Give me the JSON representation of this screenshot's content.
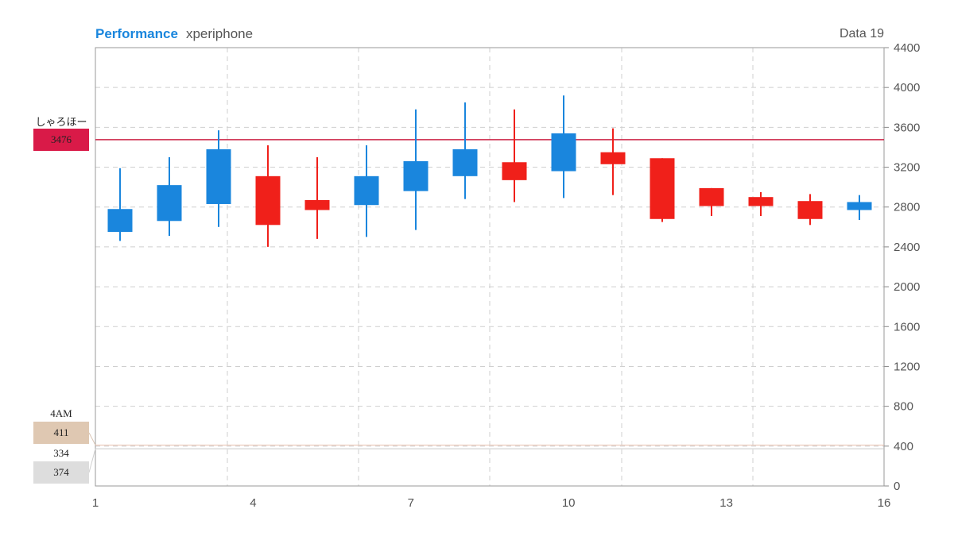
{
  "header": {
    "title": "Performance",
    "subtitle": "xperiphone",
    "right_label": "Data 19"
  },
  "colors": {
    "accent": "#1a86dd",
    "up": "#1a86dd",
    "down": "#f0201a",
    "marker_line_1": "#cc2244",
    "marker_box_1": "#d91a48",
    "marker_line_2": "#e8bfae",
    "marker_box_2": "#dfc8b2",
    "marker_box_3": "#dddddd"
  },
  "markers": {
    "m1": {
      "label": "しゃろほー",
      "value": "3476"
    },
    "m2": {
      "label": "4AM",
      "value": "411"
    },
    "m3": {
      "label": "334",
      "value": "374"
    }
  },
  "chart_data": {
    "type": "candlestick",
    "title": "Performance",
    "xlim": [
      1,
      16
    ],
    "ylim": [
      0,
      4400
    ],
    "x_ticks": [
      1,
      4,
      7,
      10,
      13,
      16
    ],
    "y_ticks": [
      0,
      400,
      800,
      1200,
      1600,
      2000,
      2400,
      2800,
      3200,
      3600,
      4000,
      4400
    ],
    "grid": true,
    "reference_lines": [
      {
        "label": "しゃろほー",
        "value": 3476
      },
      {
        "label": "4AM",
        "value": 411
      },
      {
        "label": "334",
        "value": 374
      }
    ],
    "candles": [
      {
        "x": 1.5,
        "open": 2550,
        "close": 2780,
        "high": 3190,
        "low": 2460
      },
      {
        "x": 2.5,
        "open": 2660,
        "close": 3020,
        "high": 3300,
        "low": 2510
      },
      {
        "x": 3.5,
        "open": 2830,
        "close": 3380,
        "high": 3570,
        "low": 2600
      },
      {
        "x": 4.5,
        "open": 3110,
        "close": 2620,
        "high": 3420,
        "low": 2400
      },
      {
        "x": 5.5,
        "open": 2870,
        "close": 2770,
        "high": 3300,
        "low": 2480
      },
      {
        "x": 6.5,
        "open": 2820,
        "close": 3110,
        "high": 3420,
        "low": 2500
      },
      {
        "x": 7.5,
        "open": 2960,
        "close": 3260,
        "high": 3780,
        "low": 2570
      },
      {
        "x": 8.5,
        "open": 3110,
        "close": 3380,
        "high": 3850,
        "low": 2880
      },
      {
        "x": 9.5,
        "open": 3250,
        "close": 3070,
        "high": 3780,
        "low": 2850
      },
      {
        "x": 10.5,
        "open": 3160,
        "close": 3540,
        "high": 3920,
        "low": 2890
      },
      {
        "x": 11.5,
        "open": 3350,
        "close": 3230,
        "high": 3590,
        "low": 2920
      },
      {
        "x": 12.5,
        "open": 3290,
        "close": 2680,
        "high": 3290,
        "low": 2650
      },
      {
        "x": 13.5,
        "open": 2990,
        "close": 2810,
        "high": 2990,
        "low": 2710
      },
      {
        "x": 14.5,
        "open": 2900,
        "close": 2810,
        "high": 2950,
        "low": 2710
      },
      {
        "x": 15.5,
        "open": 2860,
        "close": 2680,
        "high": 2930,
        "low": 2620
      },
      {
        "x": 16.5,
        "open": 2770,
        "close": 2850,
        "high": 2920,
        "low": 2670
      }
    ]
  }
}
